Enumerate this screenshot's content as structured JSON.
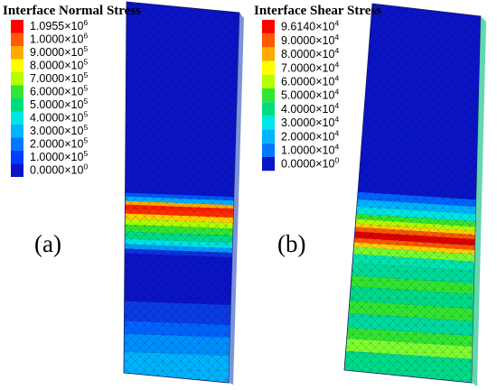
{
  "panels": [
    {
      "title": "Interface Normal Stress",
      "label": "(a)",
      "legend": [
        {
          "mantissa": "1.0955",
          "exponent": "6",
          "color": "#ff0000"
        },
        {
          "mantissa": "1.0000",
          "exponent": "6",
          "color": "#ff5a00"
        },
        {
          "mantissa": "9.0000",
          "exponent": "5",
          "color": "#ffaa00"
        },
        {
          "mantissa": "8.0000",
          "exponent": "5",
          "color": "#ffff00"
        },
        {
          "mantissa": "7.0000",
          "exponent": "5",
          "color": "#b4ff00"
        },
        {
          "mantissa": "6.0000",
          "exponent": "5",
          "color": "#32e632"
        },
        {
          "mantissa": "5.0000",
          "exponent": "5",
          "color": "#00dc7d"
        },
        {
          "mantissa": "4.0000",
          "exponent": "5",
          "color": "#00e6e6"
        },
        {
          "mantissa": "3.0000",
          "exponent": "5",
          "color": "#00b4ff"
        },
        {
          "mantissa": "2.0000",
          "exponent": "5",
          "color": "#0078ff"
        },
        {
          "mantissa": "1.0000",
          "exponent": "5",
          "color": "#003cff"
        },
        {
          "mantissa": "0.0000",
          "exponent": "0",
          "color": "#0a14c8"
        }
      ]
    },
    {
      "title": "Interface Shear Stress",
      "label": "(b)",
      "legend": [
        {
          "mantissa": "9.6140",
          "exponent": "4",
          "color": "#ff0000"
        },
        {
          "mantissa": "9.0000",
          "exponent": "4",
          "color": "#ff5a00"
        },
        {
          "mantissa": "8.0000",
          "exponent": "4",
          "color": "#ffaa00"
        },
        {
          "mantissa": "7.0000",
          "exponent": "4",
          "color": "#ffff00"
        },
        {
          "mantissa": "6.0000",
          "exponent": "4",
          "color": "#b4ff00"
        },
        {
          "mantissa": "5.0000",
          "exponent": "4",
          "color": "#32e632"
        },
        {
          "mantissa": "4.0000",
          "exponent": "4",
          "color": "#00dc7d"
        },
        {
          "mantissa": "3.0000",
          "exponent": "4",
          "color": "#00e6e6"
        },
        {
          "mantissa": "2.0000",
          "exponent": "4",
          "color": "#00b4ff"
        },
        {
          "mantissa": "1.0000",
          "exponent": "4",
          "color": "#0078ff"
        },
        {
          "mantissa": "0.0000",
          "exponent": "0",
          "color": "#0a14c8"
        }
      ]
    }
  ],
  "colors": {
    "background_blue": "#0a14c8",
    "mesh_line": "#000000",
    "side_face": "#6a8ad8"
  }
}
